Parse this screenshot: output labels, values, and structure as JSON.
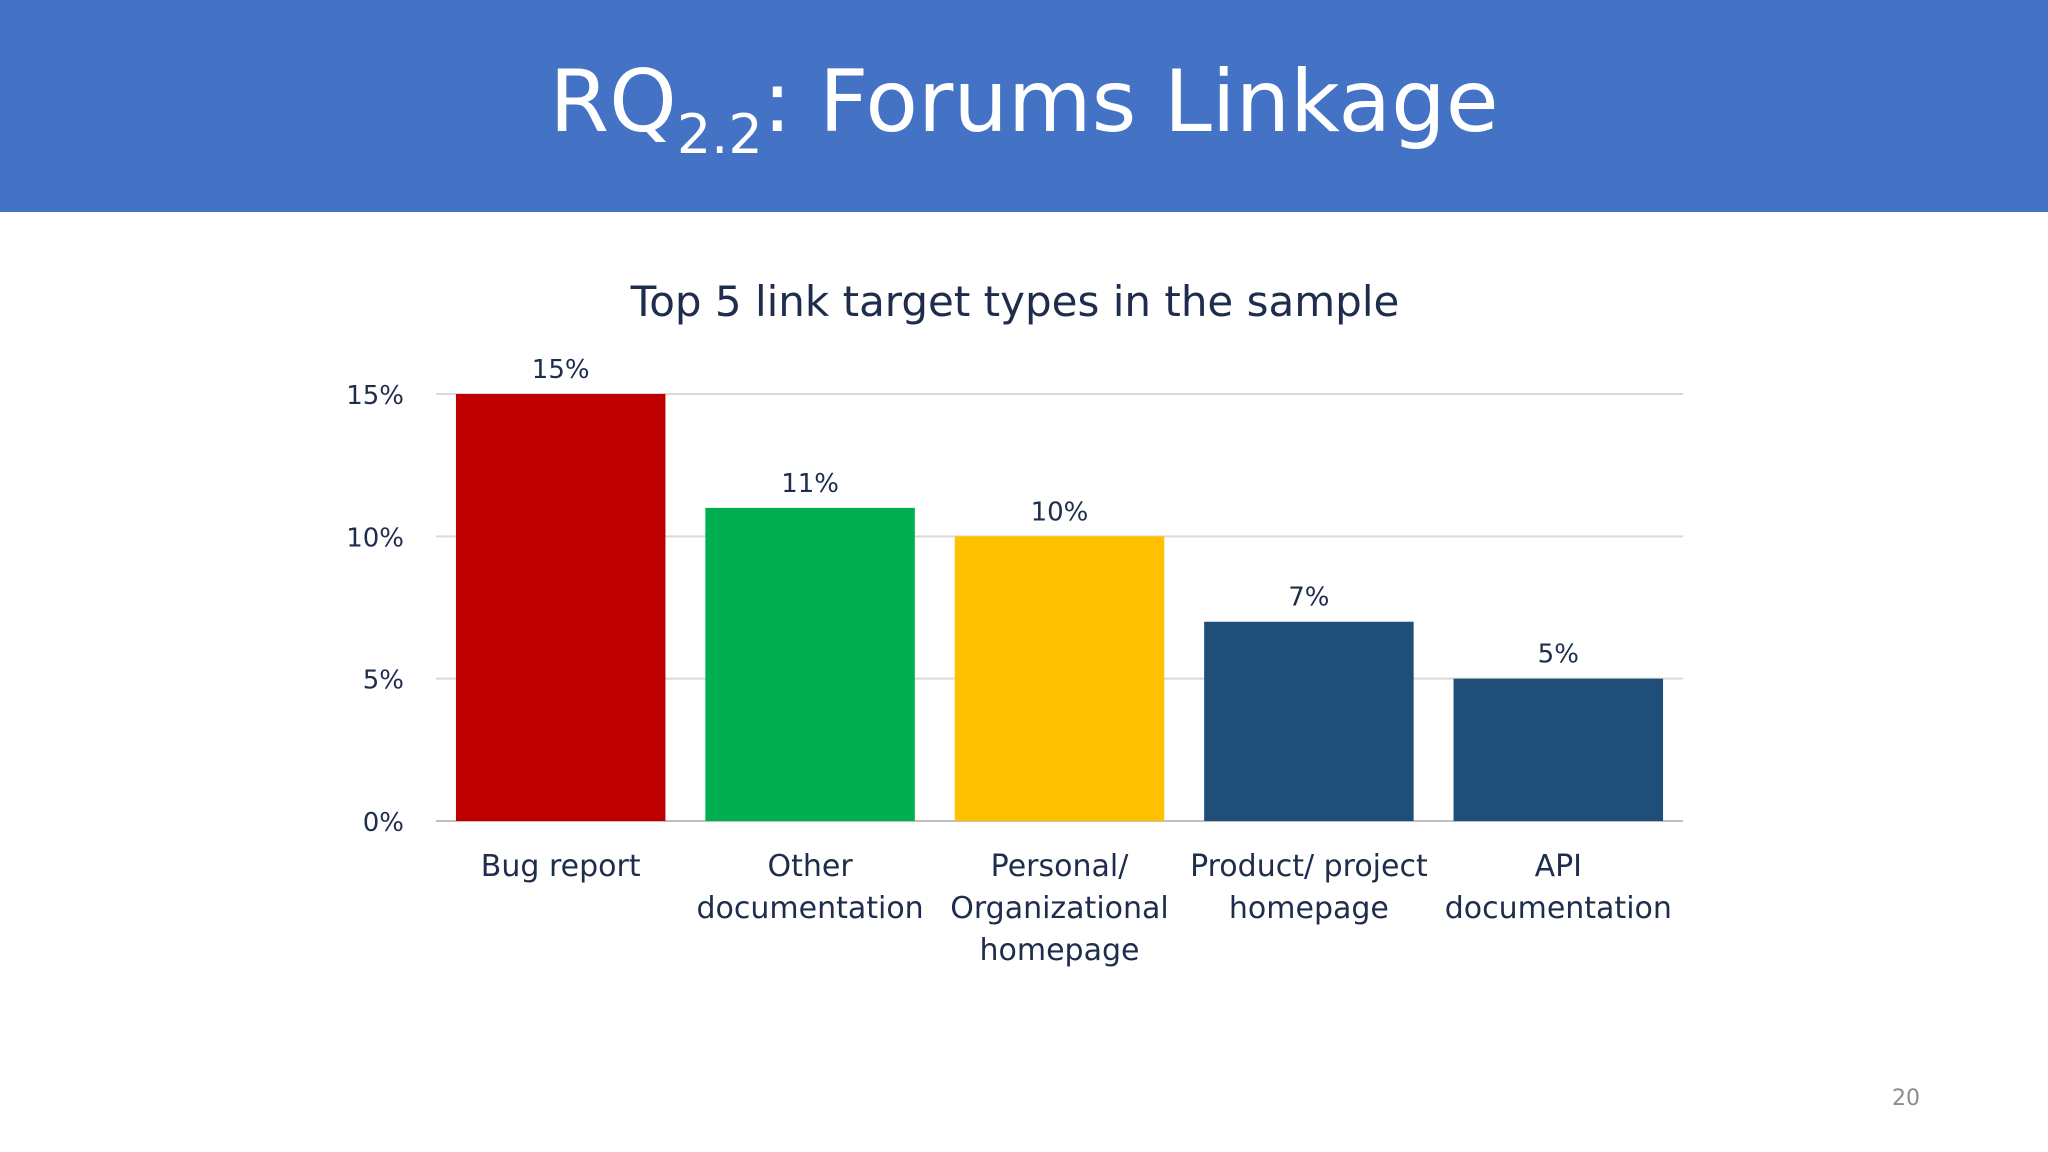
{
  "slide": {
    "title_main": "RQ",
    "title_sub": "2.2",
    "title_rest": ": Forums Linkage",
    "page_number": "20"
  },
  "chart_data": {
    "type": "bar",
    "title": "Top 5 link target types in the sample",
    "categories": [
      [
        "Bug report"
      ],
      [
        "Other",
        "documentation"
      ],
      [
        "Personal/",
        "Organizational",
        "homepage"
      ],
      [
        "Product/ project",
        "homepage"
      ],
      [
        "API",
        "documentation"
      ]
    ],
    "values": [
      15,
      11,
      10,
      7,
      5
    ],
    "data_labels": [
      "15%",
      "11%",
      "10%",
      "7%",
      "5%"
    ],
    "colors": [
      "#c00000",
      "#00b050",
      "#ffc000",
      "#1f4e79",
      "#1f4e79"
    ],
    "ylim": [
      0,
      15
    ],
    "yticks": [
      0,
      5,
      10,
      15
    ],
    "ytick_labels": [
      "0%",
      "5%",
      "10%",
      "15%"
    ],
    "grid": true,
    "xlabel": "",
    "ylabel": ""
  }
}
